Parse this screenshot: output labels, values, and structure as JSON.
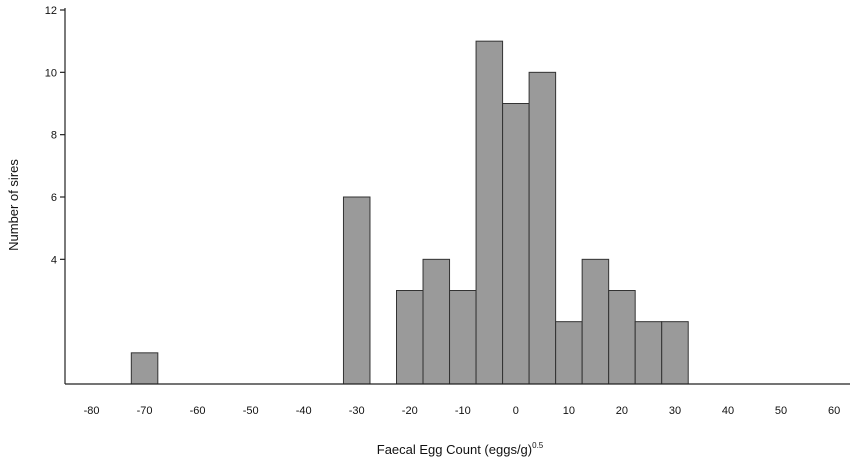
{
  "chart_data": {
    "type": "bar",
    "title": "",
    "xlabel": "Faecal Egg Count (eggs/g)",
    "xlabel_exponent": "0.5",
    "ylabel": "Number of sires",
    "xlim": [
      -85,
      63
    ],
    "ylim": [
      0,
      12
    ],
    "bin_width": 5,
    "x_ticks": [
      -80,
      -70,
      -60,
      -50,
      -40,
      -30,
      -20,
      -10,
      0,
      10,
      20,
      30,
      40,
      50,
      60
    ],
    "x_tick_labels": [
      "-80",
      "-70",
      "-60",
      "-50",
      "-40",
      "-30",
      "-20",
      "-10",
      "0",
      "10",
      "20",
      "30",
      "40",
      "50",
      "60"
    ],
    "y_ticks": [
      4,
      6,
      8,
      10,
      12
    ],
    "y_tick_labels": [
      "4",
      "6",
      "8",
      "10",
      "12"
    ],
    "bars": [
      {
        "x": -70,
        "value": 1
      },
      {
        "x": -30,
        "value": 6
      },
      {
        "x": -20,
        "value": 3
      },
      {
        "x": -15,
        "value": 4
      },
      {
        "x": -10,
        "value": 3
      },
      {
        "x": -5,
        "value": 11
      },
      {
        "x": 0,
        "value": 9
      },
      {
        "x": 5,
        "value": 10
      },
      {
        "x": 10,
        "value": 2
      },
      {
        "x": 15,
        "value": 4
      },
      {
        "x": 20,
        "value": 3
      },
      {
        "x": 25,
        "value": 2
      },
      {
        "x": 30,
        "value": 2
      }
    ],
    "grid": false,
    "bar_color": "#9a9a9a",
    "bar_edge_color": "#333333"
  }
}
